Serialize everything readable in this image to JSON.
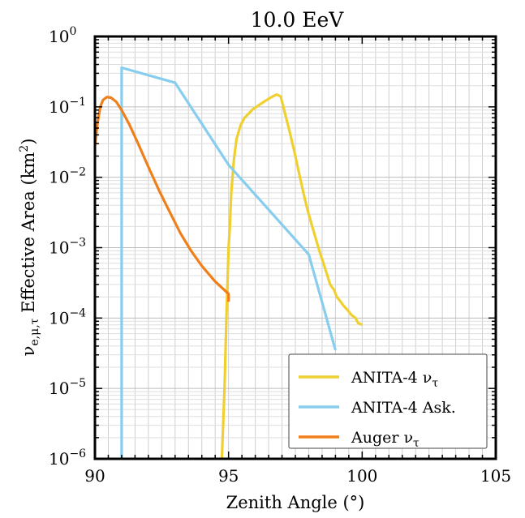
{
  "chart_data": {
    "type": "line",
    "title": "10.0 EeV",
    "xlabel": "Zenith Angle (°)",
    "ylabel": "ν_e,μ,τ Effective Area (km²)",
    "xlim": [
      90,
      105
    ],
    "ylim": [
      1e-06,
      1
    ],
    "yscale": "log",
    "grid": true,
    "legend_position": "lower-right",
    "x_ticks": [
      {
        "value": 90,
        "label": "90"
      },
      {
        "value": 95,
        "label": "95"
      },
      {
        "value": 100,
        "label": "100"
      },
      {
        "value": 105,
        "label": "105"
      }
    ],
    "y_ticks": [
      {
        "value": 1,
        "base": "10",
        "exp": "0"
      },
      {
        "value": 0.1,
        "base": "10",
        "exp": "−1"
      },
      {
        "value": 0.01,
        "base": "10",
        "exp": "−2"
      },
      {
        "value": 0.001,
        "base": "10",
        "exp": "−3"
      },
      {
        "value": 0.0001,
        "base": "10",
        "exp": "−4"
      },
      {
        "value": 1e-05,
        "base": "10",
        "exp": "−5"
      },
      {
        "value": 1e-06,
        "base": "10",
        "exp": "−6"
      }
    ],
    "series": [
      {
        "name": "ANITA-4 ν_τ",
        "color": "#f0d030",
        "points": [
          [
            94.75,
            1e-06
          ],
          [
            94.85,
            1e-05
          ],
          [
            94.92,
            0.0001
          ],
          [
            95.0,
            0.001
          ],
          [
            95.05,
            0.002
          ],
          [
            95.1,
            0.006
          ],
          [
            95.2,
            0.018
          ],
          [
            95.3,
            0.035
          ],
          [
            95.45,
            0.055
          ],
          [
            95.6,
            0.07
          ],
          [
            95.75,
            0.08
          ],
          [
            95.9,
            0.092
          ],
          [
            96.05,
            0.1
          ],
          [
            96.2,
            0.11
          ],
          [
            96.35,
            0.12
          ],
          [
            96.5,
            0.13
          ],
          [
            96.65,
            0.14
          ],
          [
            96.8,
            0.15
          ],
          [
            96.95,
            0.14
          ],
          [
            97.05,
            0.1
          ],
          [
            97.2,
            0.06
          ],
          [
            97.35,
            0.035
          ],
          [
            97.5,
            0.02
          ],
          [
            97.65,
            0.011
          ],
          [
            97.8,
            0.006
          ],
          [
            97.95,
            0.0035
          ],
          [
            98.1,
            0.0022
          ],
          [
            98.25,
            0.0014
          ],
          [
            98.4,
            0.0009
          ],
          [
            98.55,
            0.0006
          ],
          [
            98.7,
            0.0004
          ],
          [
            98.8,
            0.0003
          ],
          [
            98.95,
            0.00025
          ],
          [
            99.05,
            0.0002
          ],
          [
            99.15,
            0.00018
          ],
          [
            99.3,
            0.00015
          ],
          [
            99.45,
            0.00013
          ],
          [
            99.6,
            0.00011
          ],
          [
            99.75,
            0.0001
          ],
          [
            99.85,
            8.5e-05
          ],
          [
            100.0,
            8e-05
          ]
        ]
      },
      {
        "name": "ANITA-4 Ask.",
        "color": "#87cdee",
        "points": [
          [
            91.0,
            1e-06
          ],
          [
            91.0,
            0.36
          ],
          [
            93.0,
            0.22
          ],
          [
            95.0,
            0.015
          ],
          [
            98.0,
            0.0008
          ],
          [
            99.0,
            3.5e-05
          ]
        ]
      },
      {
        "name": "Auger ν_τ",
        "color": "#f07f1a",
        "points": [
          [
            90.0,
            0.028
          ],
          [
            90.1,
            0.06
          ],
          [
            90.2,
            0.1
          ],
          [
            90.3,
            0.125
          ],
          [
            90.45,
            0.138
          ],
          [
            90.6,
            0.135
          ],
          [
            90.8,
            0.118
          ],
          [
            91.0,
            0.09
          ],
          [
            91.3,
            0.055
          ],
          [
            91.6,
            0.031
          ],
          [
            92.0,
            0.014
          ],
          [
            92.4,
            0.0065
          ],
          [
            92.8,
            0.0032
          ],
          [
            93.2,
            0.0016
          ],
          [
            93.6,
            0.0009
          ],
          [
            94.0,
            0.00055
          ],
          [
            94.5,
            0.00033
          ],
          [
            95.0,
            0.00022
          ],
          [
            95.0,
            0.00017
          ]
        ]
      }
    ]
  }
}
